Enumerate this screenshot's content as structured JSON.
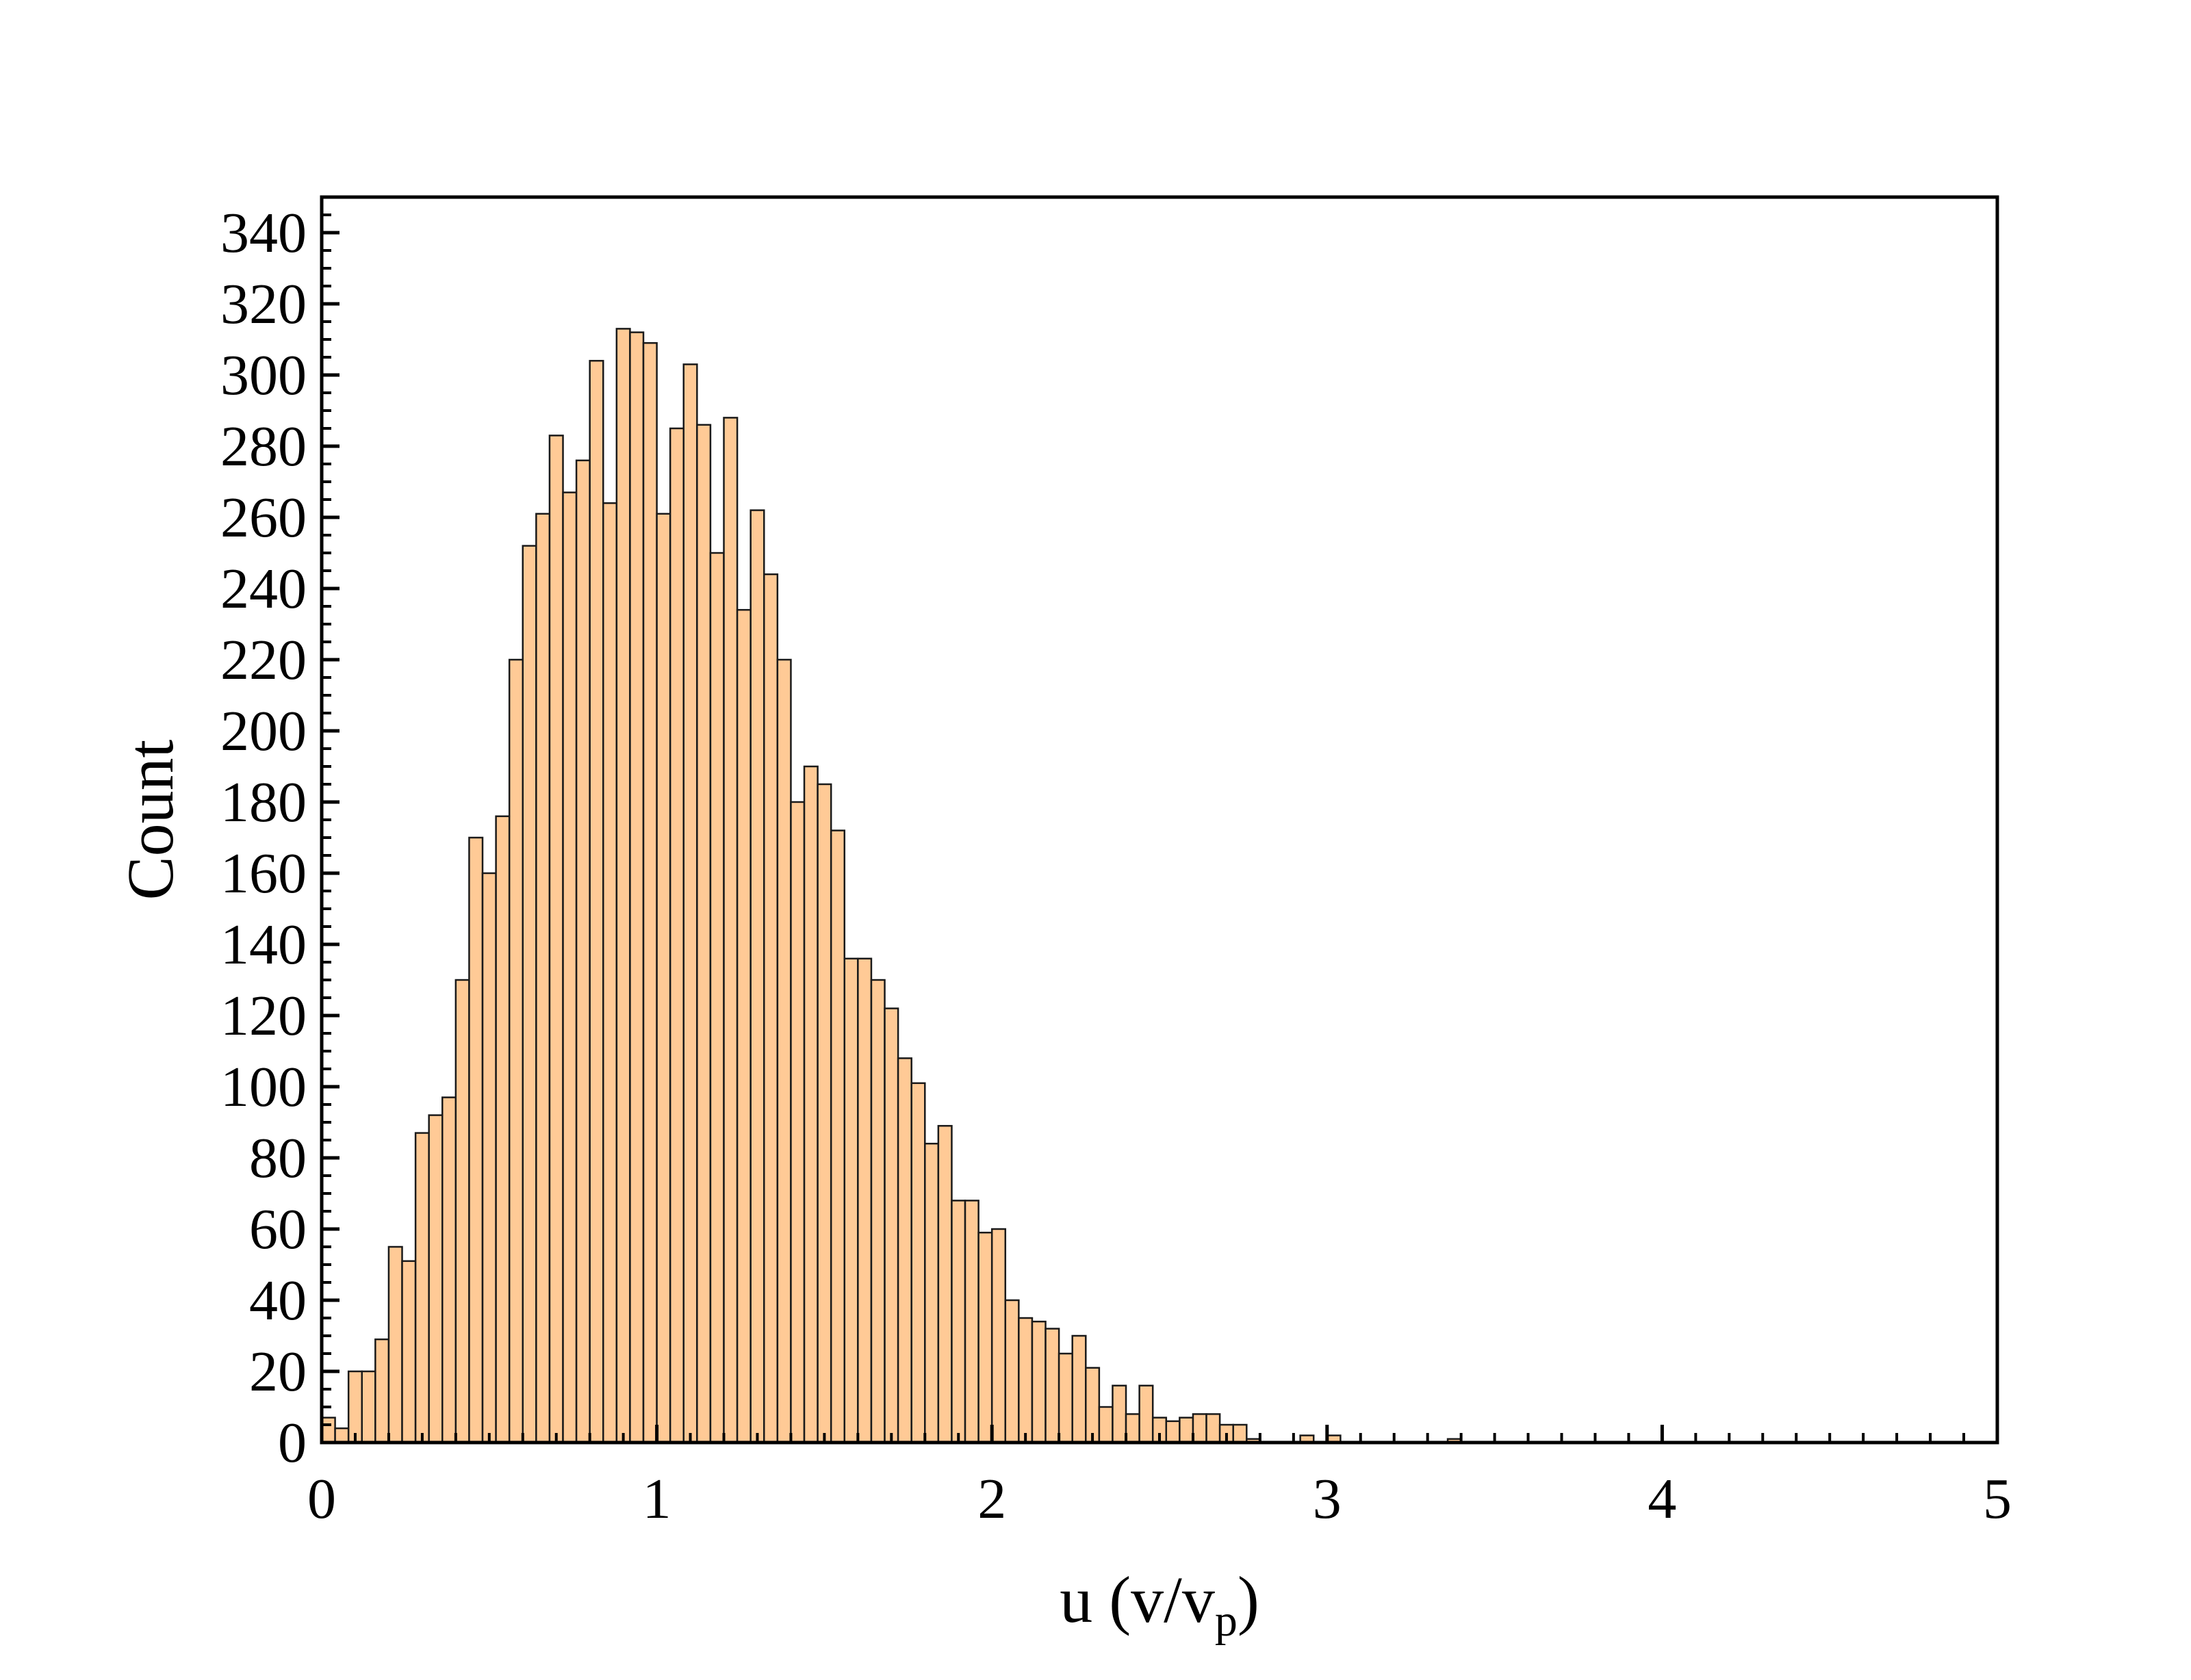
{
  "chart_data": {
    "type": "bar",
    "title": "",
    "xlabel": {
      "main": "u (v/v",
      "sub": "p",
      "close": ")"
    },
    "ylabel": "Count",
    "xlim": [
      0,
      5
    ],
    "ylim": [
      0,
      350
    ],
    "xticks": [
      "0",
      "1",
      "2",
      "3",
      "4",
      "5"
    ],
    "yticks": [
      "0",
      "20",
      "40",
      "60",
      "80",
      "100",
      "120",
      "140",
      "160",
      "180",
      "200",
      "220",
      "240",
      "260",
      "280",
      "300",
      "320",
      "340"
    ],
    "bin_width": 0.04,
    "bin_start": 0,
    "values": [
      7,
      4,
      20,
      20,
      29,
      55,
      51,
      87,
      92,
      97,
      130,
      170,
      160,
      176,
      220,
      252,
      261,
      283,
      267,
      276,
      304,
      264,
      313,
      312,
      309,
      261,
      285,
      303,
      286,
      250,
      288,
      234,
      262,
      244,
      220,
      180,
      190,
      185,
      172,
      136,
      136,
      130,
      122,
      108,
      101,
      84,
      89,
      68,
      68,
      59,
      60,
      40,
      35,
      34,
      32,
      25,
      30,
      21,
      10,
      16,
      8,
      16,
      7,
      6,
      7,
      8,
      8,
      5,
      5,
      1,
      0,
      0,
      0,
      2,
      0,
      2,
      0,
      0,
      0,
      0,
      0,
      0,
      0,
      0,
      1
    ],
    "grid": false,
    "legend": "none",
    "bar_fill": "#ffca96",
    "bar_stroke": "#1a1a1a"
  }
}
